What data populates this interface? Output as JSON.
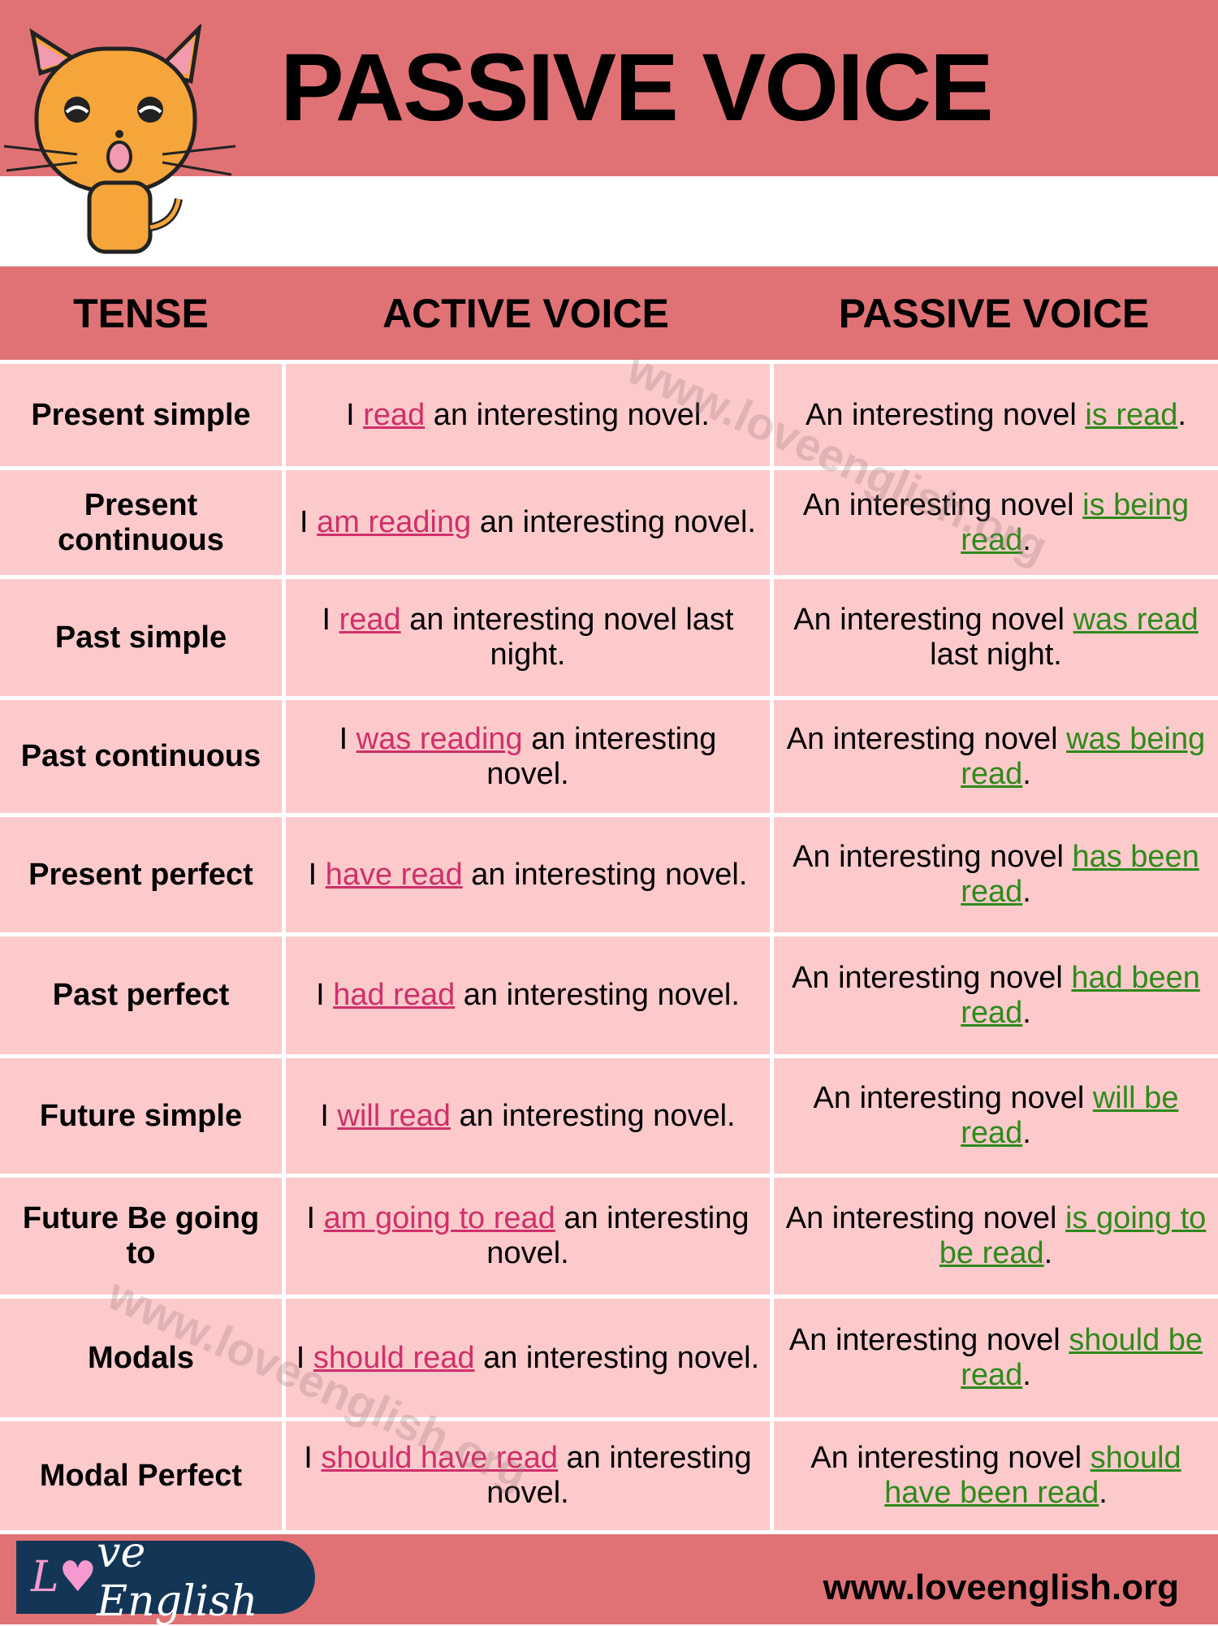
{
  "title": "PASSIVE VOICE",
  "headers": [
    "TENSE",
    "ACTIVE VOICE",
    "PASSIVE VOICE"
  ],
  "colors": {
    "band": "#e07275",
    "row": "#fccacb",
    "active_highlight": "#d0306a",
    "passive_highlight": "#2f8a1c"
  },
  "rows": [
    {
      "tense": "Present simple",
      "active": [
        "I ",
        "read",
        " an interesting novel."
      ],
      "passive": [
        "An interesting novel ",
        "is read",
        "."
      ]
    },
    {
      "tense": "Present continuous",
      "active": [
        "I ",
        "am reading",
        " an interesting novel."
      ],
      "passive": [
        "An interesting novel ",
        "is being read",
        "."
      ]
    },
    {
      "tense": "Past simple",
      "active": [
        "I ",
        "read",
        " an interesting novel last night."
      ],
      "passive": [
        "An interesting novel ",
        "was read",
        " last night."
      ]
    },
    {
      "tense": "Past continuous",
      "active": [
        "I ",
        "was reading",
        " an interesting novel."
      ],
      "passive": [
        "An interesting novel ",
        "was being read",
        "."
      ]
    },
    {
      "tense": "Present perfect",
      "active": [
        "I ",
        "have read",
        " an interesting novel."
      ],
      "passive": [
        "An interesting novel ",
        "has been read",
        "."
      ]
    },
    {
      "tense": "Past perfect",
      "active": [
        "I ",
        "had read",
        " an interesting novel."
      ],
      "passive": [
        "An interesting novel ",
        "had been read",
        "."
      ]
    },
    {
      "tense": "Future simple",
      "active": [
        "I ",
        "will read",
        " an interesting novel."
      ],
      "passive": [
        "An interesting novel ",
        "will be read",
        "."
      ]
    },
    {
      "tense": "Future Be going to",
      "active": [
        "I ",
        "am going to read",
        " an interesting novel."
      ],
      "passive": [
        "An interesting novel ",
        "is going to be read",
        "."
      ]
    },
    {
      "tense": "Modals",
      "active": [
        "I ",
        "should read",
        " an interesting novel."
      ],
      "passive": [
        "An interesting novel ",
        "should be read",
        "."
      ]
    },
    {
      "tense": "Modal Perfect",
      "active": [
        "I ",
        "should have read",
        " an interesting novel."
      ],
      "passive": [
        "An interesting novel ",
        "should have been read",
        "."
      ]
    }
  ],
  "watermark": "www.loveenglish.org",
  "footer": {
    "logo_text": "Love English",
    "url": "www.loveenglish.org"
  },
  "mascot_icon": "cat-icon"
}
